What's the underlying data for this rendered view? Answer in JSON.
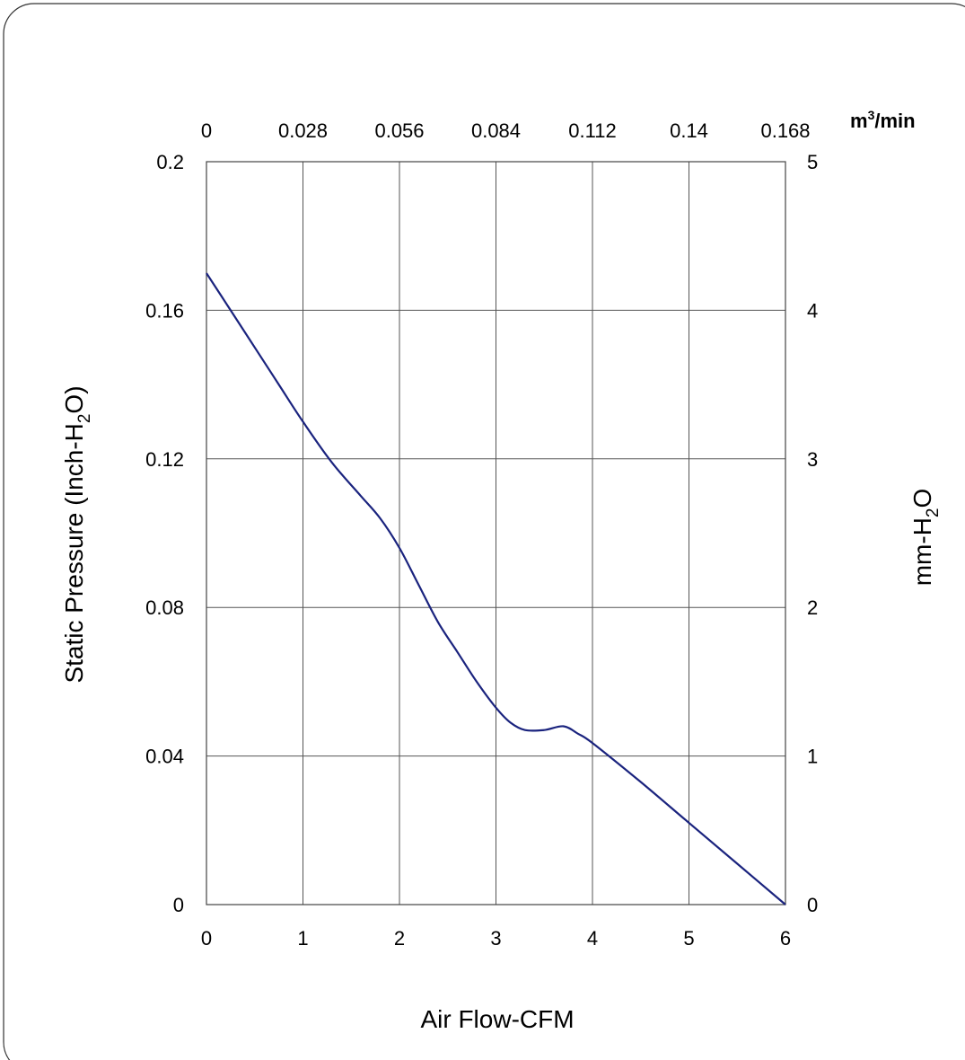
{
  "chart_data": {
    "type": "line",
    "title": "",
    "xlabel": "Air Flow-CFM",
    "ylabel_prefix": "Static Pressure (Inch-H",
    "ylabel_sub": "2",
    "ylabel_suffix": "O)",
    "y2label_prefix": "mm-H",
    "y2label_sub": "2",
    "y2label_suffix": "O",
    "x2unit_prefix": "m",
    "x2unit_sup": "3",
    "x2unit_suffix": "/min",
    "xlim": [
      0,
      6
    ],
    "ylim": [
      0,
      0.2
    ],
    "y2lim": [
      0,
      5
    ],
    "x_ticks": [
      "0",
      "1",
      "2",
      "3",
      "4",
      "5",
      "6"
    ],
    "x2_ticks": [
      "0",
      "0.028",
      "0.056",
      "0.084",
      "0.112",
      "0.14",
      "0.168"
    ],
    "y_ticks": [
      "0",
      "0.04",
      "0.08",
      "0.12",
      "0.16",
      "0.2"
    ],
    "y2_ticks": [
      "0",
      "1",
      "2",
      "3",
      "4",
      "5"
    ],
    "grid": true,
    "line_color": "#1a237e",
    "series": [
      {
        "x": [
          0,
          0.25,
          0.5,
          0.75,
          1.0,
          1.3,
          1.6,
          1.8,
          2.0,
          2.2,
          2.4,
          2.6,
          2.8,
          3.0,
          3.15,
          3.3,
          3.5,
          3.7,
          3.85,
          4.0,
          4.5,
          5.0,
          5.5,
          6.0
        ],
        "y": [
          0.17,
          0.16,
          0.15,
          0.14,
          0.13,
          0.119,
          0.11,
          0.104,
          0.096,
          0.086,
          0.076,
          0.068,
          0.06,
          0.053,
          0.049,
          0.047,
          0.047,
          0.048,
          0.046,
          0.0435,
          0.033,
          0.022,
          0.011,
          0.0
        ]
      }
    ]
  }
}
